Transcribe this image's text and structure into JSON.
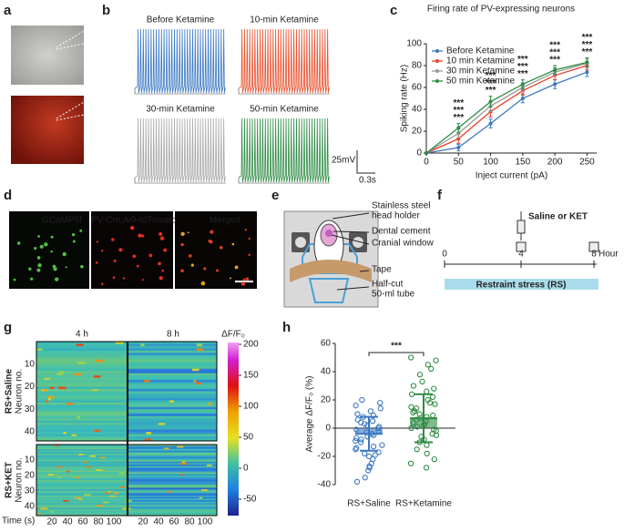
{
  "panel_labels": [
    "a",
    "b",
    "c",
    "d",
    "e",
    "f",
    "g",
    "h"
  ],
  "b": {
    "traces": [
      {
        "name": "Before Ketamine",
        "color": "#3b78c2"
      },
      {
        "name": "10-min Ketamine",
        "color": "#e8502d"
      },
      {
        "name": "30-min Ketamine",
        "color": "#a8a8a8"
      },
      {
        "name": "50-min Ketamine",
        "color": "#2e8b45"
      }
    ],
    "scale_v": "25mV",
    "scale_t": "0.3s"
  },
  "chart_data": [
    {
      "type": "line",
      "title": "Firing rate of PV-expressing neurons",
      "x_label": "Inject current (pA)",
      "y_label": "Spiking rate (Hz)",
      "x": [
        0,
        50,
        100,
        150,
        200,
        250
      ],
      "xlim": [
        0,
        265
      ],
      "xticks": [
        0,
        50,
        100,
        150,
        200,
        250
      ],
      "ylim": [
        0,
        100
      ],
      "yticks": [
        0,
        20,
        40,
        60,
        80,
        100
      ],
      "legend": "upper left",
      "series": [
        {
          "name": "Before Ketamine",
          "color": "#3b78c2",
          "values": [
            0,
            5,
            27,
            50,
            63,
            74
          ],
          "errors": [
            0,
            3,
            4,
            4,
            4,
            4
          ]
        },
        {
          "name": "10 min Ketamine",
          "color": "#e8402a",
          "values": [
            0,
            13,
            38,
            57,
            71,
            80
          ],
          "errors": [
            0,
            4,
            5,
            4,
            4,
            4
          ]
        },
        {
          "name": "30 min Ketamine",
          "color": "#999999",
          "values": [
            0,
            18,
            43,
            60,
            74,
            82
          ],
          "errors": [
            0,
            4,
            5,
            4,
            4,
            4
          ]
        },
        {
          "name": "50 min Ketamine",
          "color": "#2e8b45",
          "values": [
            0,
            23,
            47,
            63,
            76,
            83
          ],
          "errors": [
            0,
            4,
            5,
            4,
            4,
            4
          ]
        }
      ],
      "significance": {
        "x": [
          50,
          100,
          150,
          200,
          250
        ],
        "label": "***",
        "colors": [
          "#2e8b45",
          "#999999",
          "#e8402a"
        ]
      }
    },
    {
      "type": "bar",
      "y_label": "Average ΔF/F₀ (%)",
      "categories": [
        "RS+Saline",
        "RS+Ketamine"
      ],
      "colors": [
        "#3b78c2",
        "#2e8b45"
      ],
      "values": [
        -4,
        7
      ],
      "errors": [
        12,
        17
      ],
      "ylim": [
        -40,
        60
      ],
      "yticks": [
        -40,
        -20,
        0,
        20,
        40,
        60
      ],
      "significance": "***",
      "points": [
        [
          -38,
          -35,
          -30,
          -28,
          -27,
          -25,
          -22,
          -20,
          -19,
          -18,
          -17,
          -15,
          -14,
          -13,
          -12,
          -10,
          -9,
          -8,
          -7,
          -6,
          -5,
          -4,
          -3,
          -2,
          -1,
          0,
          1,
          2,
          3,
          4,
          5,
          6,
          8,
          9,
          10,
          12,
          14,
          16,
          18,
          20
        ],
        [
          -28,
          -25,
          -22,
          -18,
          -15,
          -12,
          -10,
          -8,
          -6,
          -5,
          -4,
          -2,
          -1,
          0,
          1,
          2,
          3,
          4,
          5,
          6,
          7,
          8,
          9,
          10,
          11,
          12,
          14,
          15,
          17,
          18,
          20,
          22,
          24,
          26,
          28,
          30,
          33,
          38,
          42,
          45,
          48,
          50
        ]
      ]
    }
  ],
  "d": {
    "labels": [
      "GCaMP6f",
      "PV-Cre;Ai9-tdTomato",
      "Merged"
    ]
  },
  "e": {
    "labels": [
      [
        "Stainless steel",
        "head holder"
      ],
      [
        "Dental cement"
      ],
      [
        "Cranial window"
      ],
      [
        "Tape"
      ],
      [
        "Half-cut",
        "50-ml tube"
      ]
    ]
  },
  "f": {
    "treatment": "Saline or KET",
    "ticks": [
      "0",
      "4",
      "8"
    ],
    "unit": "Hour",
    "bar": "Restraint stress (RS)"
  },
  "g": {
    "columns": [
      "4 h",
      "8 h"
    ],
    "colorbar_title": "ΔF/F₀",
    "colorbar_ticks": [
      200,
      150,
      100,
      50,
      0,
      -50
    ],
    "rows": [
      "RS+Saline",
      "RS+KET"
    ],
    "row_axis": "Neuron no.",
    "yticks": [
      "10",
      "20",
      "30",
      "40"
    ],
    "x_label": "Time (s)",
    "xticks": [
      "20",
      "40",
      "60",
      "80",
      "100"
    ]
  }
}
